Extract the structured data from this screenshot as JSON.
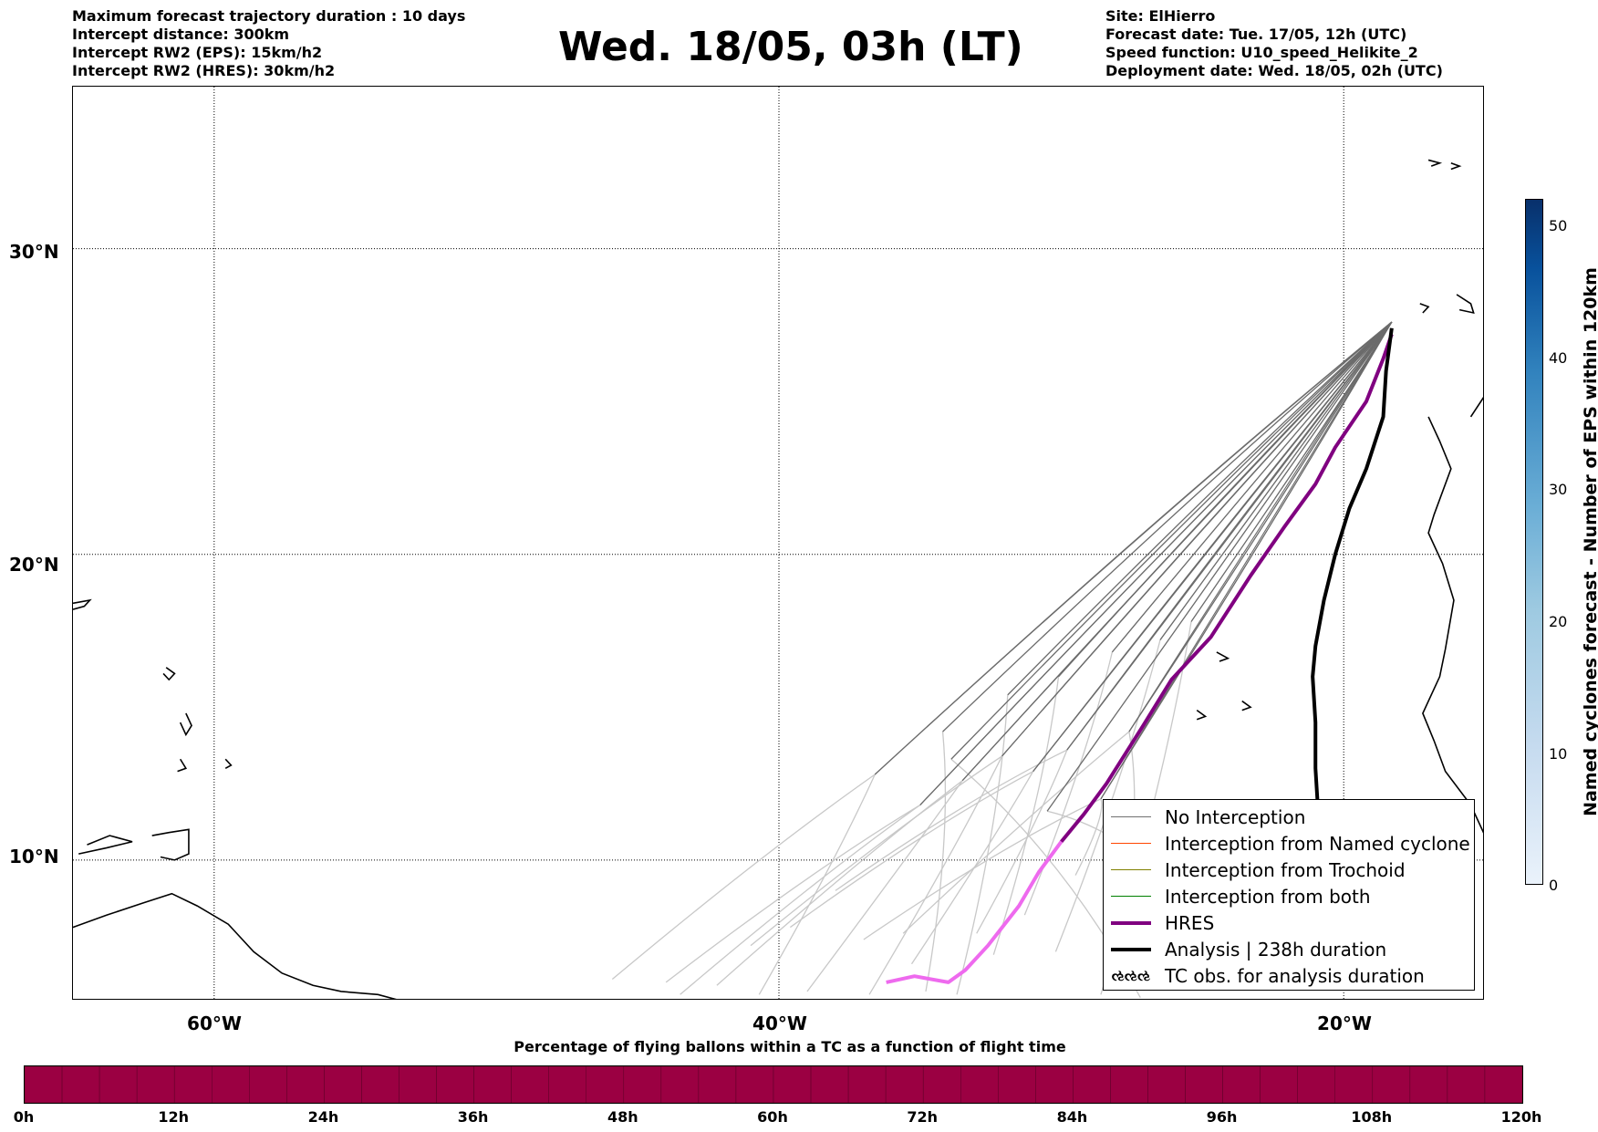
{
  "header": {
    "left_lines": [
      "Maximum forecast trajectory duration : 10 days",
      "Intercept distance: 300km",
      "Intercept RW2 (EPS):  15km/h2",
      "Intercept RW2 (HRES): 30km/h2"
    ],
    "title": "Wed. 18/05, 03h (LT)",
    "right_lines": [
      "Site: ElHierro",
      "Forecast date: Tue. 17/05, 12h (UTC)",
      "Speed function: U10_speed_Helikite_2",
      "Deployment date: Wed. 18/05, 02h (UTC)"
    ]
  },
  "map": {
    "lat_labels": [
      "30°N",
      "20°N",
      "10°N"
    ],
    "lon_labels": [
      "60°W",
      "40°W",
      "20°W"
    ],
    "lat_values": [
      30,
      20,
      10
    ],
    "lon_values": [
      -60,
      -40,
      -20
    ],
    "extent": {
      "lon_min": -65,
      "lon_max": -15,
      "lat_min": 5.4,
      "lat_max": 35.3
    },
    "colors": {
      "eps_early": "#c8c8c8",
      "eps_late": "#6b6b6b",
      "hres": "#800080",
      "hres_early": "#ee6aee",
      "analysis": "#000000"
    },
    "launch_point": {
      "lon": -18.3,
      "lat": 27.6
    },
    "hres_track": [
      [
        -18.3,
        27.2
      ],
      [
        -18.6,
        26.4
      ],
      [
        -19.2,
        25.0
      ],
      [
        -20.3,
        23.5
      ],
      [
        -21.0,
        22.3
      ],
      [
        -22.1,
        20.9
      ],
      [
        -23.3,
        19.3
      ],
      [
        -24.7,
        17.3
      ],
      [
        -26.1,
        15.9
      ],
      [
        -27.1,
        14.4
      ],
      [
        -28.4,
        12.5
      ],
      [
        -29.2,
        11.5
      ],
      [
        -30.0,
        10.6
      ],
      [
        -30.8,
        9.6
      ],
      [
        -31.5,
        8.5
      ],
      [
        -32.6,
        7.2
      ],
      [
        -33.4,
        6.4
      ],
      [
        -34.0,
        6.0
      ],
      [
        -35.2,
        6.2
      ],
      [
        -36.2,
        6.0
      ]
    ],
    "hres_late_until_index": 12,
    "analysis_track": [
      [
        -18.3,
        27.4
      ],
      [
        -18.5,
        26.0
      ],
      [
        -18.6,
        24.5
      ],
      [
        -19.2,
        22.8
      ],
      [
        -19.8,
        21.5
      ],
      [
        -20.3,
        20.0
      ],
      [
        -20.7,
        18.5
      ],
      [
        -21.0,
        17.0
      ],
      [
        -21.1,
        16.0
      ],
      [
        -21.0,
        14.5
      ],
      [
        -21.0,
        13.0
      ],
      [
        -20.9,
        11.5
      ]
    ],
    "eps_end_points": [
      [
        -45.9,
        6.1
      ],
      [
        -44.0,
        6.0
      ],
      [
        -42.2,
        5.9
      ],
      [
        -41.0,
        7.2
      ],
      [
        -39.6,
        7.8
      ],
      [
        -38.0,
        9.0
      ],
      [
        -37.0,
        7.4
      ],
      [
        -35.6,
        7.6
      ],
      [
        -34.8,
        5.7
      ],
      [
        -33.7,
        5.6
      ],
      [
        -32.4,
        6.9
      ],
      [
        -31.3,
        8.2
      ],
      [
        -30.2,
        7.0
      ],
      [
        -28.6,
        5.6
      ],
      [
        -27.2,
        5.5
      ],
      [
        -26.0,
        8.8
      ],
      [
        -40.7,
        5.6
      ],
      [
        -43.5,
        5.6
      ],
      [
        -39.0,
        5.7
      ],
      [
        -36.8,
        5.6
      ],
      [
        -35.3,
        6.6
      ],
      [
        -33.0,
        7.6
      ],
      [
        -29.5,
        9.5
      ],
      [
        -27.9,
        7.4
      ]
    ],
    "eps_mid_points": [
      [
        -36.6,
        12.8
      ],
      [
        -35.0,
        11.8
      ],
      [
        -33.5,
        12.6
      ],
      [
        -32.1,
        13.4
      ],
      [
        -31.0,
        12.9
      ],
      [
        -29.8,
        13.6
      ],
      [
        -28.6,
        12.0
      ],
      [
        -27.6,
        14.2
      ],
      [
        -34.2,
        14.2
      ],
      [
        -31.9,
        15.4
      ],
      [
        -30.1,
        16.0
      ],
      [
        -28.2,
        16.8
      ],
      [
        -26.5,
        17.2
      ],
      [
        -25.4,
        17.8
      ],
      [
        -33.9,
        13.3
      ],
      [
        -30.5,
        11.6
      ]
    ]
  },
  "legend": {
    "items": [
      {
        "label": "No Interception",
        "color": "#707070",
        "width": 1.2,
        "marker": false
      },
      {
        "label": "Interception from Named cyclone",
        "color": "#ff4500",
        "width": 1.2,
        "marker": false
      },
      {
        "label": "Interception from Trochoid",
        "color": "#808000",
        "width": 1.2,
        "marker": false
      },
      {
        "label": "Interception from both",
        "color": "#008000",
        "width": 1.2,
        "marker": false
      },
      {
        "label": "HRES",
        "color": "#800080",
        "width": 4,
        "marker": false
      },
      {
        "label": "Analysis | 238h duration",
        "color": "#000000",
        "width": 4,
        "marker": false
      },
      {
        "label": "TC obs. for analysis duration",
        "color": "#000000",
        "width": 0,
        "marker": true,
        "marker_text": "ઌઌઌ"
      }
    ]
  },
  "colorbar_vertical": {
    "label": "Named cyclones forecast - Number of EPS within 120km",
    "min": 0,
    "max": 52,
    "ticks": [
      "0",
      "10",
      "20",
      "30",
      "40",
      "50"
    ],
    "tick_values": [
      0,
      10,
      20,
      30,
      40,
      50
    ]
  },
  "colorbar_horizontal": {
    "title": "Percentage of flying ballons within a TC as a function of flight time",
    "ticks": [
      "0h",
      "12h",
      "24h",
      "36h",
      "48h",
      "60h",
      "72h",
      "84h",
      "96h",
      "108h",
      "120h"
    ],
    "tick_values": [
      0,
      12,
      24,
      36,
      48,
      60,
      72,
      84,
      96,
      108,
      120
    ],
    "max": 120,
    "fill_color": "#9b0042"
  }
}
